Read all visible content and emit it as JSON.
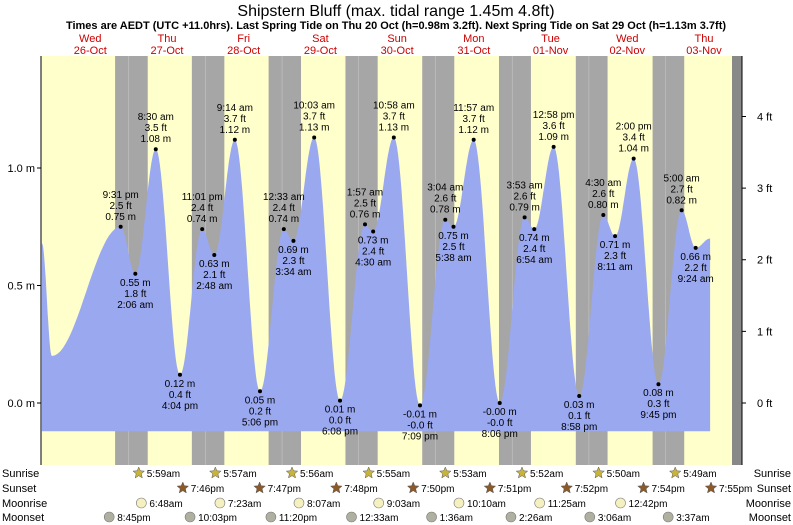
{
  "title": "Shipstern Bluff (max. tidal range 1.45m 4.8ft)",
  "subtitle": "Times are AEDT (UTC +11.0hrs). Last Spring Tide on Thu 20 Oct (h=0.98m 3.2ft). Next Spring Tide on Sat 29 Oct (h=1.13m 3.7ft)",
  "colors": {
    "day": "#ffffcc",
    "night": "#a6a6a6",
    "tide": "#9aa8f0",
    "day_label": "#cc0000",
    "sun_icon": "#c8b43c",
    "sunset_icon": "#8b5a2b",
    "moonrise_icon": "#f5f0c0",
    "moonset_icon": "#b0b0a0"
  },
  "chart_data": {
    "type": "area",
    "x_unit": "days from Wed 26-Oct 00:00 (AEDT)",
    "ylabel_left_unit": "m",
    "ylabel_right_unit": "ft",
    "ylim": [
      -0.12,
      1.45
    ],
    "yticks_m": [
      "0.0 m",
      "0.5 m",
      "1.0 m"
    ],
    "yticks_ft": [
      "0 ft",
      "1 ft",
      "2 ft",
      "3 ft",
      "4 ft"
    ],
    "days": [
      {
        "dow": "Wed",
        "date": "26-Oct"
      },
      {
        "dow": "Thu",
        "date": "27-Oct"
      },
      {
        "dow": "Fri",
        "date": "28-Oct"
      },
      {
        "dow": "Sat",
        "date": "29-Oct"
      },
      {
        "dow": "Sun",
        "date": "30-Oct"
      },
      {
        "dow": "Mon",
        "date": "31-Oct"
      },
      {
        "dow": "Tue",
        "date": "01-Nov"
      },
      {
        "dow": "Wed",
        "date": "02-Nov"
      },
      {
        "dow": "Thu",
        "date": "03-Nov"
      }
    ],
    "tides": [
      {
        "time": "Wed 26-Oct 9:31 pm",
        "h_m": 0.75,
        "label": [
          "9:31 pm",
          "2.5 ft",
          "0.75 m"
        ],
        "type": "high"
      },
      {
        "time": "Thu 27-Oct 2:06 am",
        "h_m": 0.55,
        "label": [
          "0.55 m",
          "1.8 ft",
          "2:06 am"
        ],
        "type": "low"
      },
      {
        "time": "Thu 27-Oct 8:30 am",
        "h_m": 1.08,
        "label": [
          "8:30 am",
          "3.5 ft",
          "1.08 m"
        ],
        "type": "high"
      },
      {
        "time": "Thu 27-Oct 4:04 pm",
        "h_m": 0.12,
        "label": [
          "0.12 m",
          "0.4 ft",
          "4:04 pm"
        ],
        "type": "low"
      },
      {
        "time": "Thu 27-Oct 11:01 pm",
        "h_m": 0.74,
        "label": [
          "11:01 pm",
          "2.4 ft",
          "0.74 m"
        ],
        "type": "high"
      },
      {
        "time": "Fri 28-Oct 2:48 am",
        "h_m": 0.63,
        "label": [
          "0.63 m",
          "2.1 ft",
          "2:48 am"
        ],
        "type": "low"
      },
      {
        "time": "Fri 28-Oct 9:14 am",
        "h_m": 1.12,
        "label": [
          "9:14 am",
          "3.7 ft",
          "1.12 m"
        ],
        "type": "high"
      },
      {
        "time": "Fri 28-Oct 5:06 pm",
        "h_m": 0.05,
        "label": [
          "0.05 m",
          "0.2 ft",
          "5:06 pm"
        ],
        "type": "low"
      },
      {
        "time": "Sat 29-Oct 12:33 am",
        "h_m": 0.74,
        "label": [
          "12:33 am",
          "2.4 ft",
          "0.74 m"
        ],
        "type": "high"
      },
      {
        "time": "Sat 29-Oct 3:34 am",
        "h_m": 0.69,
        "label": [
          "0.69 m",
          "2.3 ft",
          "3:34 am"
        ],
        "type": "low"
      },
      {
        "time": "Sat 29-Oct 10:03 am",
        "h_m": 1.13,
        "label": [
          "10:03 am",
          "3.7 ft",
          "1.13 m"
        ],
        "type": "high"
      },
      {
        "time": "Sat 29-Oct 6:08 pm",
        "h_m": 0.01,
        "label": [
          "0.01 m",
          "0.0 ft",
          "6:08 pm"
        ],
        "type": "low"
      },
      {
        "time": "Sun 30-Oct 1:57 am",
        "h_m": 0.76,
        "label": [
          "1:57 am",
          "2.5 ft",
          "0.76 m"
        ],
        "type": "high"
      },
      {
        "time": "Sun 30-Oct 4:30 am",
        "h_m": 0.73,
        "label": [
          "0.73 m",
          "2.4 ft",
          "4:30 am"
        ],
        "type": "low"
      },
      {
        "time": "Sun 30-Oct 10:58 am",
        "h_m": 1.13,
        "label": [
          "10:58 am",
          "3.7 ft",
          "1.13 m"
        ],
        "type": "high"
      },
      {
        "time": "Sun 30-Oct 7:09 pm",
        "h_m": -0.01,
        "label": [
          "-0.01 m",
          "-0.0 ft",
          "7:09 pm"
        ],
        "type": "low"
      },
      {
        "time": "Mon 31-Oct 3:04 am",
        "h_m": 0.78,
        "label": [
          "3:04 am",
          "2.6 ft",
          "0.78 m"
        ],
        "type": "high"
      },
      {
        "time": "Mon 31-Oct 5:38 am",
        "h_m": 0.75,
        "label": [
          "0.75 m",
          "2.5 ft",
          "5:38 am"
        ],
        "type": "low"
      },
      {
        "time": "Mon 31-Oct 11:57 am",
        "h_m": 1.12,
        "label": [
          "11:57 am",
          "3.7 ft",
          "1.12 m"
        ],
        "type": "high"
      },
      {
        "time": "Mon 31-Oct 8:06 pm",
        "h_m": -0.0,
        "label": [
          "-0.00 m",
          "-0.0 ft",
          "8:06 pm"
        ],
        "type": "low"
      },
      {
        "time": "Tue 01-Nov 3:53 am",
        "h_m": 0.79,
        "label": [
          "3:53 am",
          "2.6 ft",
          "0.79 m"
        ],
        "type": "high"
      },
      {
        "time": "Tue 01-Nov 6:54 am",
        "h_m": 0.74,
        "label": [
          "0.74 m",
          "2.4 ft",
          "6:54 am"
        ],
        "type": "low"
      },
      {
        "time": "Tue 01-Nov 12:58 pm",
        "h_m": 1.09,
        "label": [
          "12:58 pm",
          "3.6 ft",
          "1.09 m"
        ],
        "type": "high"
      },
      {
        "time": "Tue 01-Nov 8:58 pm",
        "h_m": 0.03,
        "label": [
          "0.03 m",
          "0.1 ft",
          "8:58 pm"
        ],
        "type": "low"
      },
      {
        "time": "Wed 02-Nov 4:30 am",
        "h_m": 0.8,
        "label": [
          "4:30 am",
          "2.6 ft",
          "0.80 m"
        ],
        "type": "high"
      },
      {
        "time": "Wed 02-Nov 8:11 am",
        "h_m": 0.71,
        "label": [
          "0.71 m",
          "2.3 ft",
          "8:11 am"
        ],
        "type": "low"
      },
      {
        "time": "Wed 02-Nov 2:00 pm",
        "h_m": 1.04,
        "label": [
          "2:00 pm",
          "3.4 ft",
          "1.04 m"
        ],
        "type": "high"
      },
      {
        "time": "Wed 02-Nov 9:45 pm",
        "h_m": 0.08,
        "label": [
          "0.08 m",
          "0.3 ft",
          "9:45 pm"
        ],
        "type": "low"
      },
      {
        "time": "Thu 03-Nov 5:00 am",
        "h_m": 0.82,
        "label": [
          "5:00 am",
          "2.7 ft",
          "0.82 m"
        ],
        "type": "high"
      },
      {
        "time": "Thu 03-Nov 9:24 am",
        "h_m": 0.66,
        "label": [
          "0.66 m",
          "2.2 ft",
          "9:24 am"
        ],
        "type": "low"
      }
    ],
    "rows": [
      {
        "name": "Sunrise",
        "key": "sunrise",
        "times": [
          "5:59am",
          "5:57am",
          "5:56am",
          "5:55am",
          "5:53am",
          "5:52am",
          "5:50am",
          "5:49am"
        ]
      },
      {
        "name": "Sunset",
        "key": "sunset",
        "times": [
          "7:46pm",
          "7:47pm",
          "7:48pm",
          "7:50pm",
          "7:51pm",
          "7:52pm",
          "7:54pm",
          "7:55pm"
        ]
      },
      {
        "name": "Moonrise",
        "key": "moonrise",
        "times": [
          "6:48am",
          "7:23am",
          "8:07am",
          "9:03am",
          "10:10am",
          "11:25am",
          "12:42pm"
        ]
      },
      {
        "name": "Moonset",
        "key": "moonset",
        "times": [
          "8:45pm",
          "10:03pm",
          "11:20pm",
          "12:33am",
          "1:36am",
          "2:26am",
          "3:06am",
          "3:37am"
        ]
      }
    ]
  }
}
